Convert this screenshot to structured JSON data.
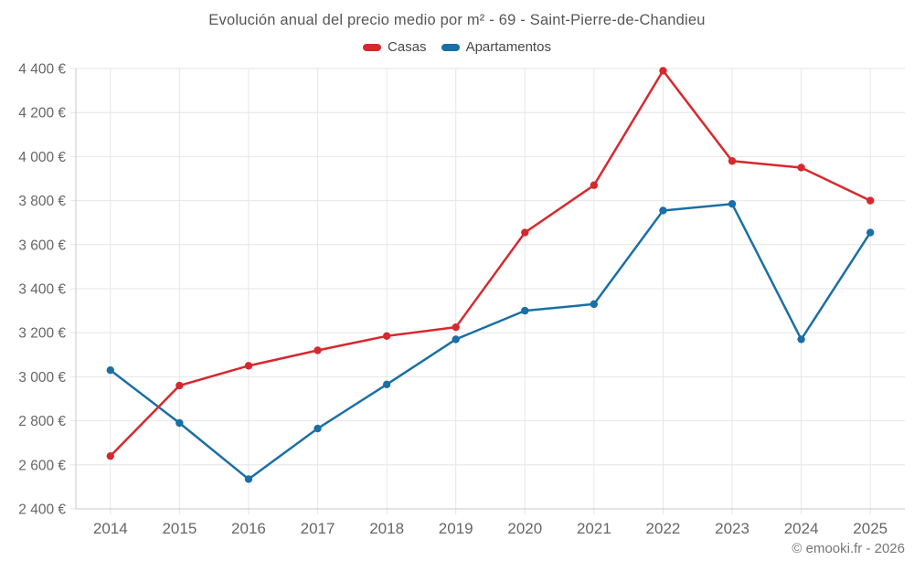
{
  "header": {
    "title": "Evolución anual del precio medio por m² - 69 - Saint-Pierre-de-Chandieu"
  },
  "legend": {
    "casas": {
      "label": "Casas",
      "color": "#d7282e"
    },
    "apartamentos": {
      "label": "Apartamentos",
      "color": "#1a6fa5"
    }
  },
  "footer": {
    "credit": "© emooki.fr - 2026"
  },
  "colors": {
    "gridline": "#e6e6e6",
    "axis": "#c9c9c9",
    "tick_text": "#666666"
  },
  "chart_data": {
    "type": "line",
    "title": "Evolución anual del precio medio por m² - 69 - Saint-Pierre-de-Chandieu",
    "categories": [
      "2014",
      "2015",
      "2016",
      "2017",
      "2018",
      "2019",
      "2020",
      "2021",
      "2022",
      "2023",
      "2024",
      "2025"
    ],
    "series": [
      {
        "name": "Casas",
        "color": "#d7282e",
        "values": [
          2640,
          2960,
          3050,
          3120,
          3185,
          3225,
          3655,
          3870,
          4390,
          3980,
          3950,
          3800
        ]
      },
      {
        "name": "Apartamentos",
        "color": "#1a6fa5",
        "values": [
          3030,
          2790,
          2535,
          2765,
          2965,
          3170,
          3300,
          3330,
          3755,
          3785,
          3170,
          3655
        ]
      }
    ],
    "ylim": [
      2400,
      4400
    ],
    "ytick_step": 200,
    "y_suffix": " €",
    "xlabel": "",
    "ylabel": "",
    "grid": true,
    "legend_position": "top"
  }
}
